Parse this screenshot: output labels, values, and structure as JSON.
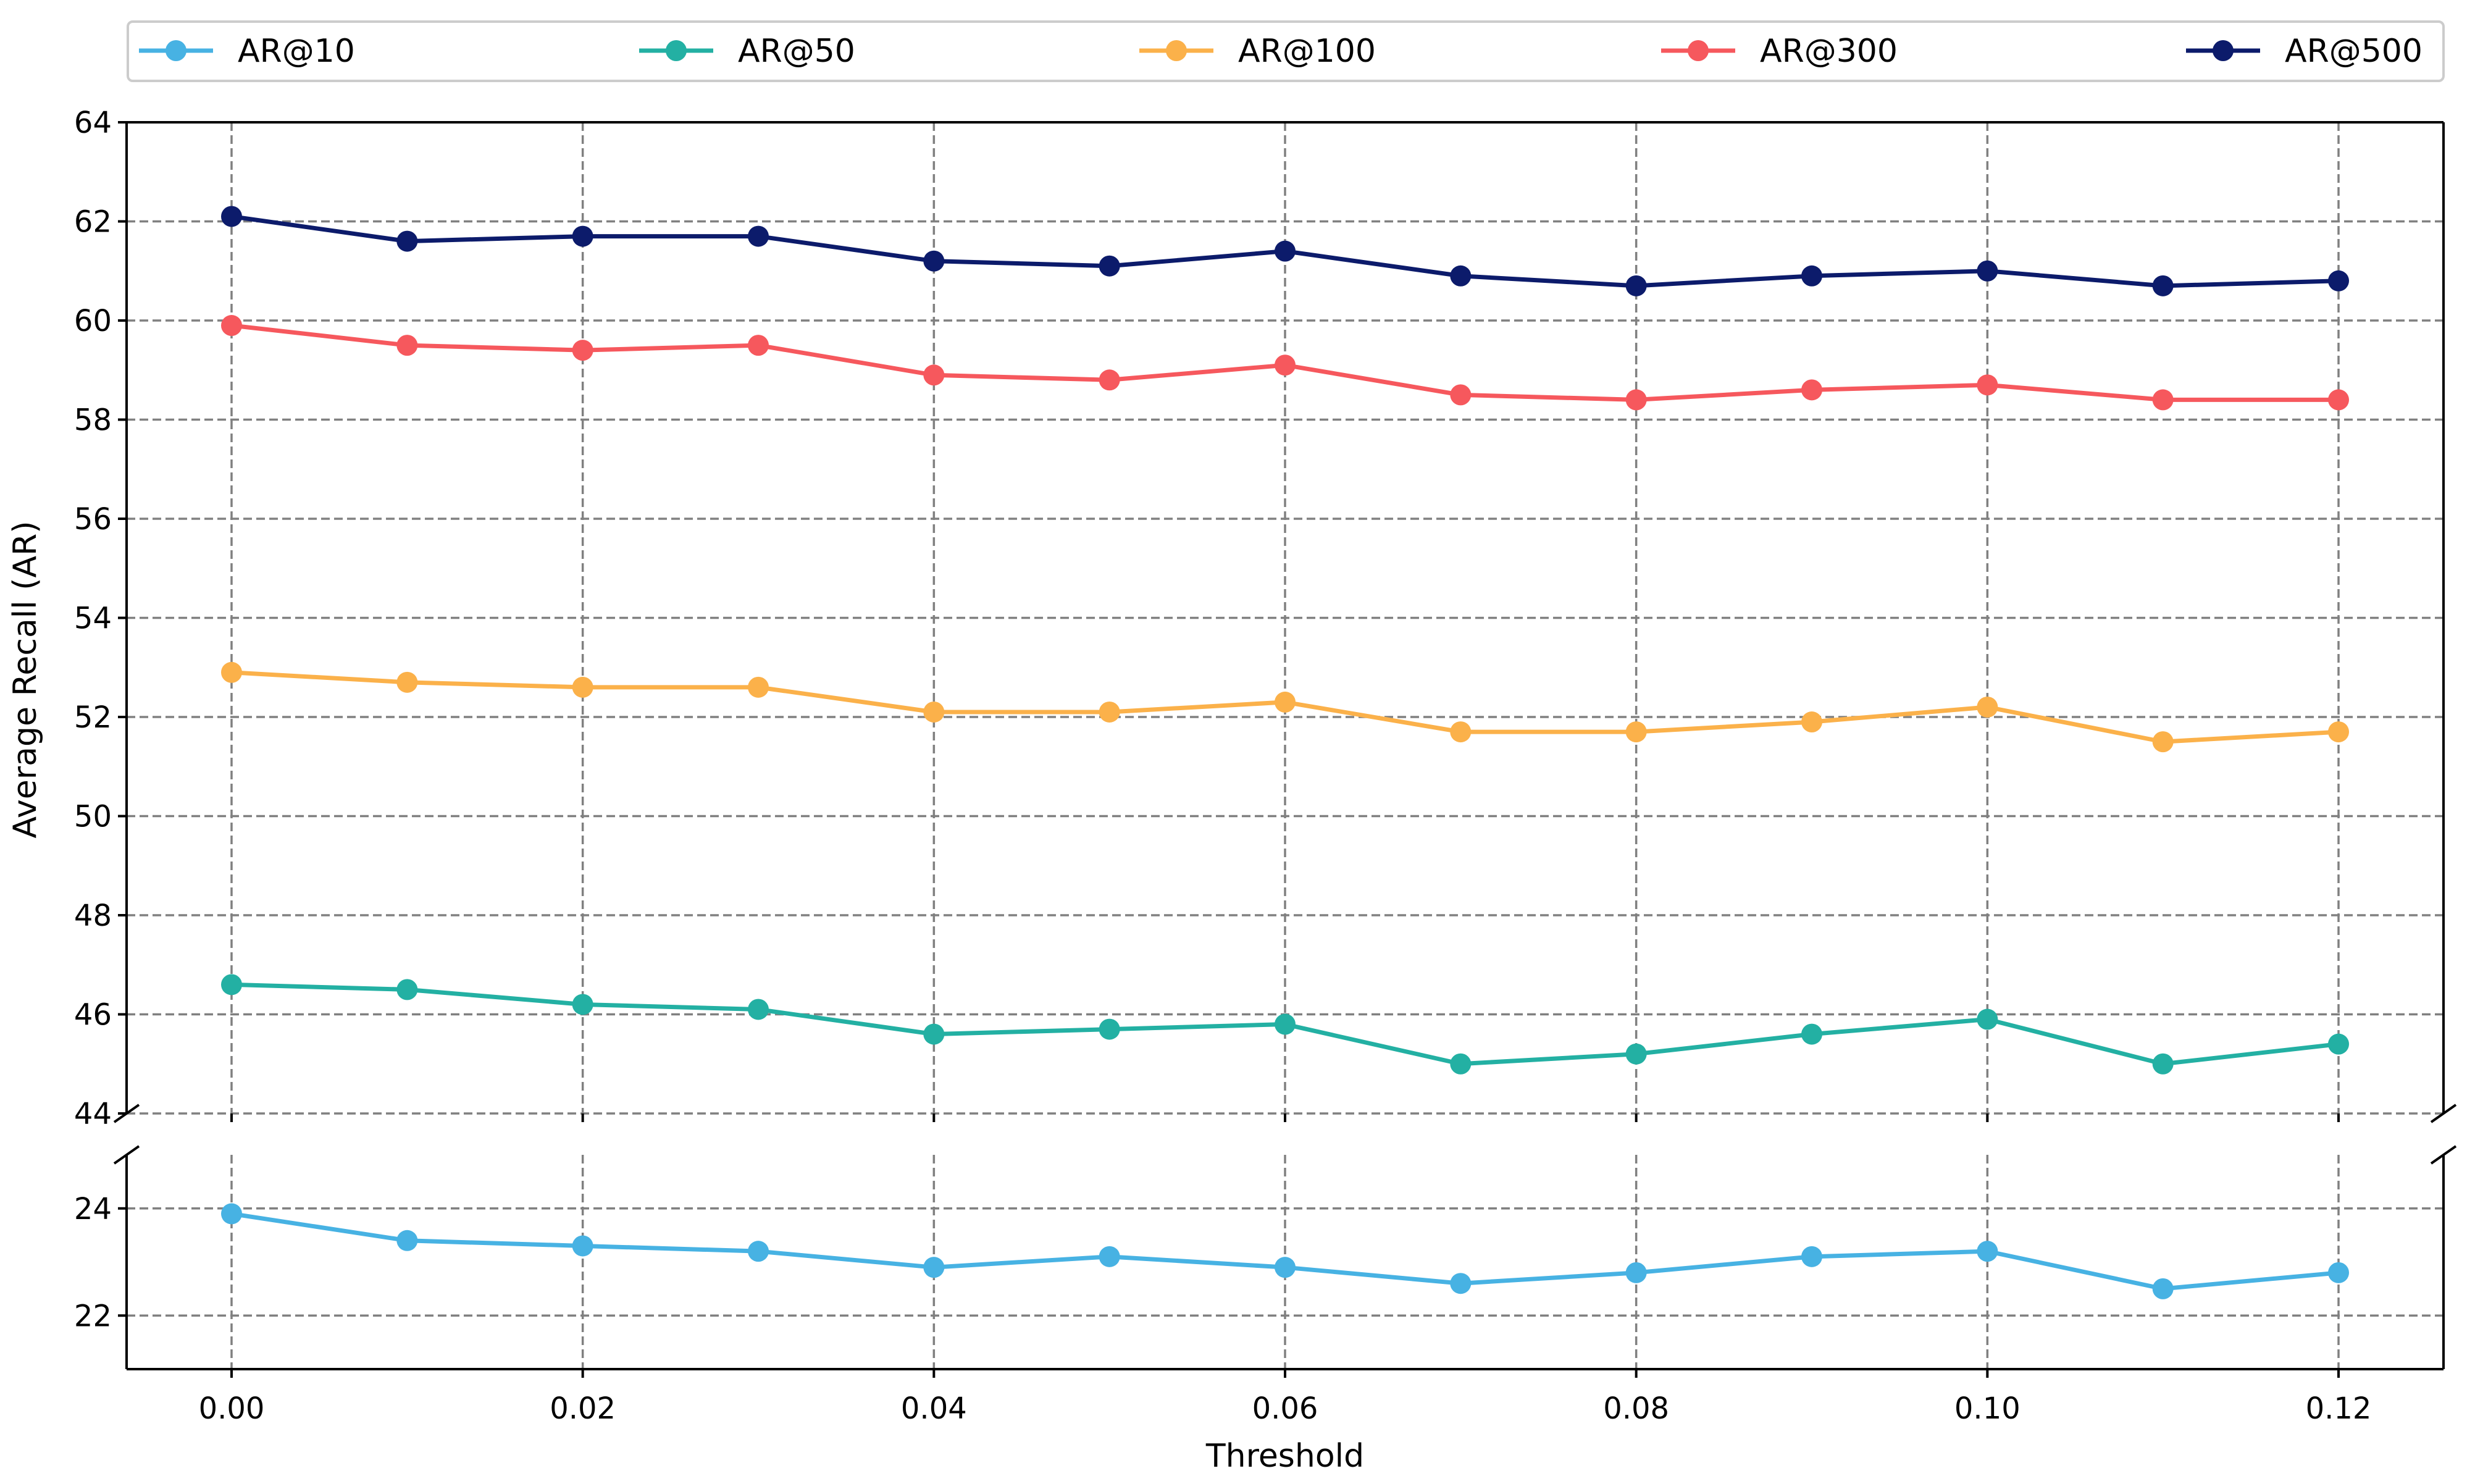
{
  "chart_data": {
    "type": "line",
    "title": "",
    "xlabel": "Threshold",
    "ylabel": "Average Recall (AR)",
    "x": [
      0.0,
      0.01,
      0.02,
      0.03,
      0.04,
      0.05,
      0.06,
      0.07,
      0.08,
      0.09,
      0.1,
      0.11,
      0.12
    ],
    "xticks": [
      "0.00",
      "0.02",
      "0.04",
      "0.06",
      "0.08",
      "0.10",
      "0.12"
    ],
    "xtick_values": [
      0.0,
      0.02,
      0.04,
      0.06,
      0.08,
      0.1,
      0.12
    ],
    "broken_axis": true,
    "upper_ylim": [
      44,
      64
    ],
    "upper_yticks": [
      "44",
      "46",
      "48",
      "50",
      "52",
      "54",
      "56",
      "58",
      "60",
      "62",
      "64"
    ],
    "lower_ylim": [
      21,
      25
    ],
    "lower_yticks": [
      "22",
      "24"
    ],
    "grid": true,
    "legend_position": "top",
    "series": [
      {
        "name": "AR@10",
        "color": "#47b2e3",
        "panel": "lower",
        "values": [
          23.9,
          23.4,
          23.3,
          23.2,
          22.9,
          23.1,
          22.9,
          22.6,
          22.8,
          23.1,
          23.2,
          22.5,
          22.8
        ]
      },
      {
        "name": "AR@50",
        "color": "#23b0a3",
        "panel": "upper",
        "values": [
          46.6,
          46.5,
          46.2,
          46.1,
          45.6,
          45.7,
          45.8,
          45.0,
          45.2,
          45.6,
          45.9,
          45.0,
          45.4
        ]
      },
      {
        "name": "AR@100",
        "color": "#fbb14a",
        "panel": "upper",
        "values": [
          52.9,
          52.7,
          52.6,
          52.6,
          52.1,
          52.1,
          52.3,
          51.7,
          51.7,
          51.9,
          52.2,
          51.5,
          51.7
        ]
      },
      {
        "name": "AR@300",
        "color": "#f6585d",
        "panel": "upper",
        "values": [
          59.9,
          59.5,
          59.4,
          59.5,
          58.9,
          58.8,
          59.1,
          58.5,
          58.4,
          58.6,
          58.7,
          58.4,
          58.4
        ]
      },
      {
        "name": "AR@500",
        "color": "#0c1b6b",
        "panel": "upper",
        "values": [
          62.1,
          61.6,
          61.7,
          61.7,
          61.2,
          61.1,
          61.4,
          60.9,
          60.7,
          60.9,
          61.0,
          60.7,
          60.8
        ]
      }
    ]
  }
}
